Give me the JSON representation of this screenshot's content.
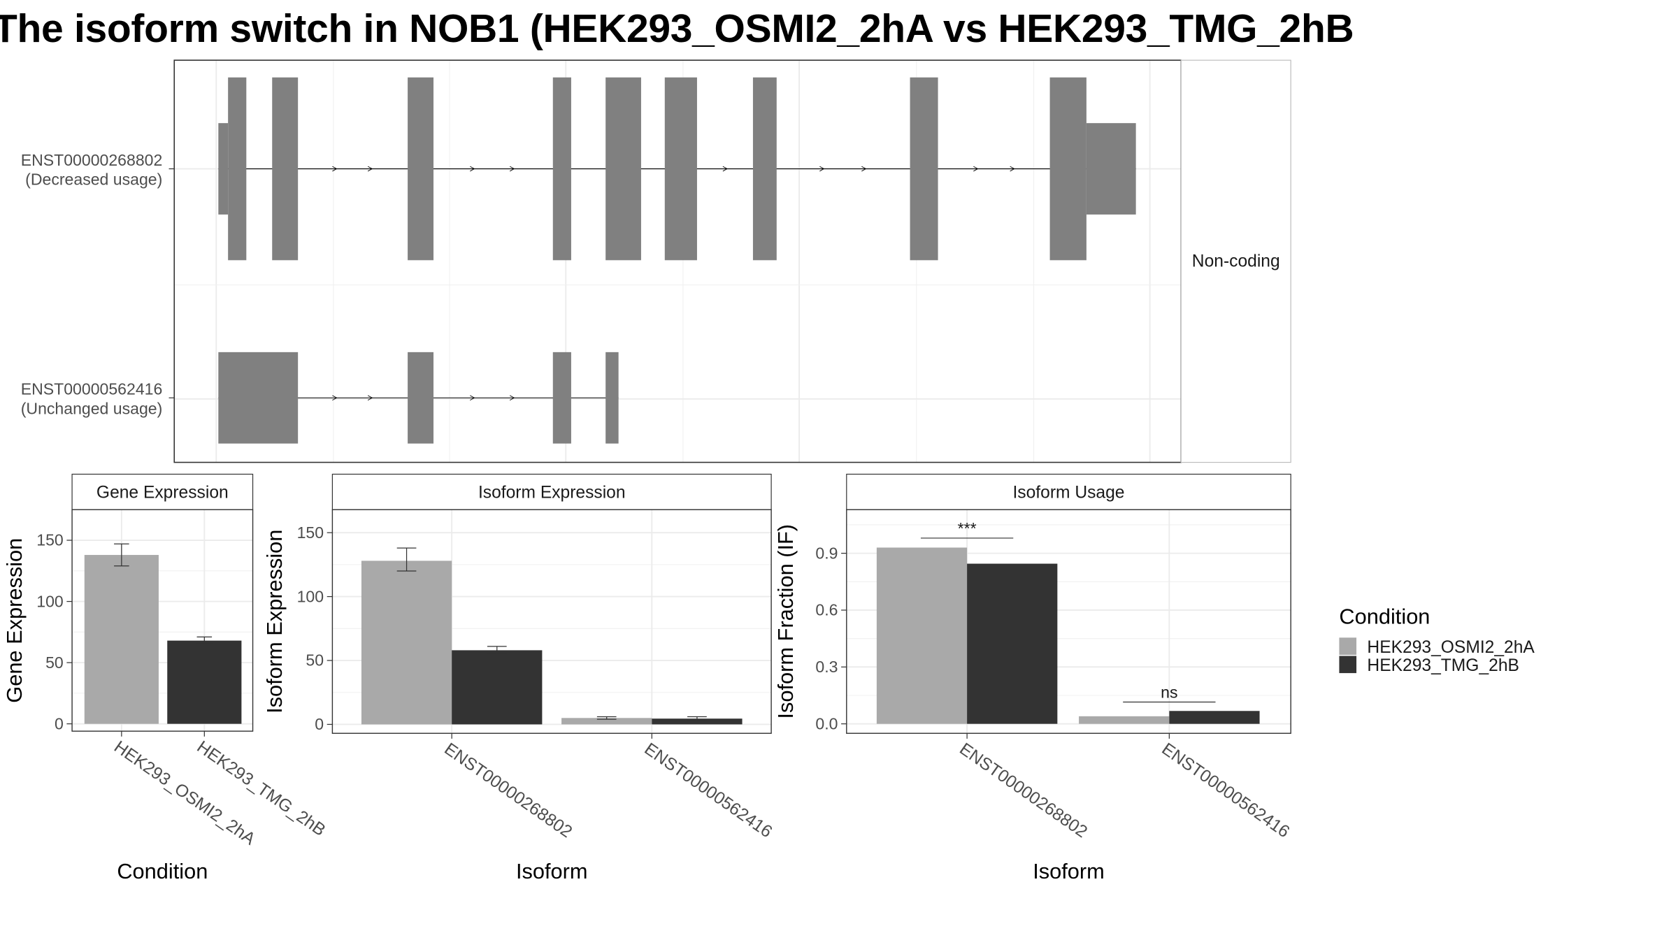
{
  "chart_data": [
    {
      "type": "diagram",
      "title": "The isoform switch in NOB1 (HEK293_OSMI2_2hA vs HEK293_TMG_2hB",
      "facet_label": "Non-coding",
      "transcripts": [
        {
          "id": "ENST00000268802",
          "usage": "(Decreased usage)",
          "exons": [
            {
              "start": 203,
              "end": 212,
              "kind": "utr"
            },
            {
              "start": 212,
              "end": 229,
              "kind": "cds"
            },
            {
              "start": 253,
              "end": 277,
              "kind": "cds"
            },
            {
              "start": 379,
              "end": 403,
              "kind": "cds"
            },
            {
              "start": 514,
              "end": 531,
              "kind": "cds"
            },
            {
              "start": 563,
              "end": 596,
              "kind": "cds"
            },
            {
              "start": 618,
              "end": 648,
              "kind": "cds"
            },
            {
              "start": 700,
              "end": 722,
              "kind": "cds"
            },
            {
              "start": 846,
              "end": 872,
              "kind": "cds"
            },
            {
              "start": 976,
              "end": 1010,
              "kind": "cds"
            },
            {
              "start": 1010,
              "end": 1056,
              "kind": "utr"
            }
          ],
          "arrows": [
            312,
            345,
            440,
            477,
            675,
            710,
            765,
            804,
            908,
            942
          ]
        },
        {
          "id": "ENST00000562416",
          "usage": "(Unchanged usage)",
          "exons": [
            {
              "start": 203,
              "end": 277,
              "kind": "utr"
            },
            {
              "start": 379,
              "end": 403,
              "kind": "utr"
            },
            {
              "start": 514,
              "end": 531,
              "kind": "utr"
            },
            {
              "start": 563,
              "end": 575,
              "kind": "utr"
            }
          ],
          "arrows": [
            312,
            345,
            440,
            477
          ]
        }
      ]
    },
    {
      "type": "bar",
      "title": "Gene Expression",
      "xlabel": "Condition",
      "ylabel": "Gene Expression",
      "categories": [
        "HEK293_OSMI2_2hA",
        "HEK293_TMG_2hB"
      ],
      "values": [
        138,
        68
      ],
      "errors": [
        [
          129,
          147
        ],
        [
          66,
          71
        ]
      ],
      "yticks": [
        0,
        50,
        100,
        150
      ],
      "ylim": [
        -6,
        175
      ]
    },
    {
      "type": "bar",
      "title": "Isoform Expression",
      "xlabel": "Isoform",
      "ylabel": "Isoform Expression",
      "categories": [
        "ENST00000268802",
        "ENST00000562416"
      ],
      "series": [
        {
          "name": "HEK293_OSMI2_2hA",
          "values": [
            128,
            5
          ],
          "errors": [
            [
              120,
              138
            ],
            [
              4,
              6
            ]
          ]
        },
        {
          "name": "HEK293_TMG_2hB",
          "values": [
            58,
            4.5
          ],
          "errors": [
            [
              56,
              61
            ],
            [
              3,
              6
            ]
          ]
        }
      ],
      "yticks": [
        0,
        50,
        100,
        150
      ],
      "ylim": [
        -7,
        168
      ]
    },
    {
      "type": "bar",
      "title": "Isoform Usage",
      "xlabel": "Isoform",
      "ylabel": "Isoform Fraction (IF)",
      "categories": [
        "ENST00000268802",
        "ENST00000562416"
      ],
      "series": [
        {
          "name": "HEK293_OSMI2_2hA",
          "values": [
            0.93,
            0.04
          ]
        },
        {
          "name": "HEK293_TMG_2hB",
          "values": [
            0.845,
            0.068
          ]
        }
      ],
      "significance": [
        {
          "label": "***",
          "y": 0.98
        },
        {
          "label": "ns",
          "y": 0.115
        }
      ],
      "yticks": [
        0.0,
        0.3,
        0.6,
        0.9
      ],
      "yticklabels": [
        "0.0",
        "0.3",
        "0.6",
        "0.9"
      ],
      "ylim": [
        -0.05,
        1.13
      ]
    }
  ],
  "legend": {
    "title": "Condition",
    "placement": "right",
    "items": [
      {
        "label": "HEK293_OSMI2_2hA",
        "color": "#a9a9a9"
      },
      {
        "label": "HEK293_TMG_2hB",
        "color": "#333333"
      }
    ]
  },
  "colors": {
    "exon": "#808080",
    "condition_a": "#a9a9a9",
    "condition_b": "#333333",
    "grid": "#ebebeb",
    "border": "#333333"
  }
}
